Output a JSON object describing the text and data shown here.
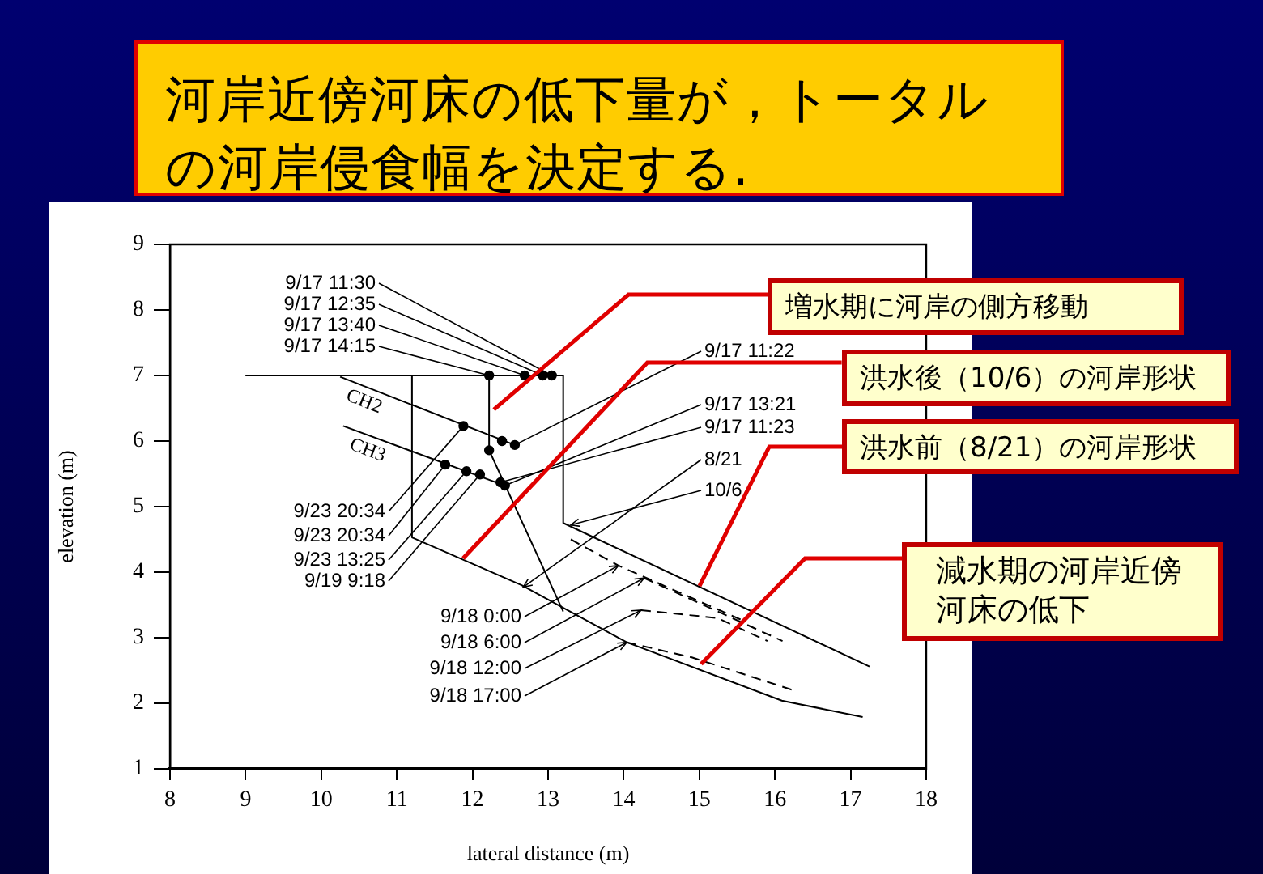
{
  "chart_data": {
    "type": "line",
    "title": "河岸近傍河床の低下量が，トータルの河岸侵食幅を決定する.",
    "xlabel": "lateral distance (m)",
    "ylabel": "elevation (m)",
    "xlim": [
      8,
      18
    ],
    "xticks": [
      8,
      9,
      10,
      11,
      12,
      13,
      14,
      15,
      16,
      17,
      18
    ],
    "ylim": [
      1,
      9
    ],
    "yticks": [
      1,
      2,
      3,
      4,
      5,
      6,
      7,
      8,
      9
    ],
    "grid": false,
    "legend": false,
    "marker": "none",
    "series": [
      {
        "color": "#000000",
        "x": [
          9,
          11.2,
          11.2,
          12.65,
          14.04,
          16.09,
          17.16
        ],
        "values": [
          7,
          7,
          4.53,
          3.8,
          2.93,
          2.04,
          1.79
        ]
      },
      {
        "color": "#000000",
        "x": [
          9,
          13.2,
          13.2,
          17.25
        ],
        "values": [
          7,
          7,
          4.75,
          2.56
        ]
      },
      {
        "color": "#000000",
        "x": [
          12.22,
          12.22,
          13.2
        ],
        "values": [
          7,
          5.86,
          3.4
        ]
      },
      {
        "name": "CH2",
        "color": "#000000",
        "x": [
          10.25,
          12.56
        ],
        "values": [
          6.98,
          5.94
        ]
      },
      {
        "name": "CH3",
        "color": "#000000",
        "x": [
          10.29,
          12.43
        ],
        "values": [
          6.23,
          5.32
        ]
      },
      {
        "color": "#000000",
        "line_style": "dashed",
        "x": [
          13.3,
          13.93,
          15.6
        ],
        "values": [
          4.5,
          4.1,
          3.25
        ]
      },
      {
        "color": "#000000",
        "line_style": "dashed",
        "x": [
          14.27,
          16.1
        ],
        "values": [
          3.91,
          2.95
        ]
      },
      {
        "color": "#000000",
        "line_style": "dashed",
        "x": [
          14.23,
          15.24,
          15.9
        ],
        "values": [
          3.42,
          3.3,
          2.95
        ]
      },
      {
        "color": "#000000",
        "line_style": "dashed",
        "x": [
          14.04,
          14.9,
          16.24
        ],
        "values": [
          2.93,
          2.7,
          2.2
        ]
      },
      {
        "type": "scatter",
        "marker": "circle",
        "color": "#000000",
        "x": [
          12.22,
          12.69,
          12.93,
          13.05,
          11.88,
          12.22,
          12.39,
          12.56,
          11.64,
          11.92,
          12.1,
          12.37,
          12.43
        ],
        "values": [
          7,
          7,
          7,
          7,
          6.23,
          5.86,
          6.0,
          5.94,
          5.64,
          5.54,
          5.49,
          5.37,
          5.32
        ]
      }
    ],
    "annotations": [
      {
        "text": "9/17 11:30",
        "x": 13.05,
        "y": 7
      },
      {
        "text": "9/17 12:35",
        "x": 12.93,
        "y": 7
      },
      {
        "text": "9/17 13:40",
        "x": 12.69,
        "y": 7
      },
      {
        "text": "9/17 14:15",
        "x": 12.22,
        "y": 7
      },
      {
        "text": "9/23 20:34",
        "x": 11.88,
        "y": 6.23
      },
      {
        "text": "9/23 20:34",
        "x": 11.64,
        "y": 5.64
      },
      {
        "text": "9/23 13:25",
        "x": 11.92,
        "y": 5.54
      },
      {
        "text": "9/19 9:18",
        "x": 12.1,
        "y": 5.49
      },
      {
        "text": "9/17 11:22",
        "x": 12.56,
        "y": 5.94
      },
      {
        "text": "9/17 13:21",
        "x": 12.43,
        "y": 5.32
      },
      {
        "text": "9/17 11:23",
        "x": 12.37,
        "y": 5.37
      },
      {
        "text": "8/21",
        "x": 12.67,
        "y": 3.77
      },
      {
        "text": "10/6",
        "x": 13.3,
        "y": 4.72
      },
      {
        "text": "9/18 0:00",
        "x": 13.93,
        "y": 4.1
      },
      {
        "text": "9/18 6:00",
        "x": 14.27,
        "y": 3.91
      },
      {
        "text": "9/18 12:00",
        "x": 14.23,
        "y": 3.42
      },
      {
        "text": "9/18 17:00",
        "x": 14.04,
        "y": 2.93
      },
      {
        "text": "増水期に河岸の側方移動",
        "x": 12.28,
        "y": 6.48
      },
      {
        "text": "洪水後（10/6）の河岸形状",
        "x": 11.88,
        "y": 4.21
      },
      {
        "text": "洪水前（8/21）の河岸形状",
        "x": 15.0,
        "y": 3.79
      },
      {
        "text": "減水期の河岸近傍河床の低下",
        "x": 15.02,
        "y": 2.6
      }
    ]
  }
}
